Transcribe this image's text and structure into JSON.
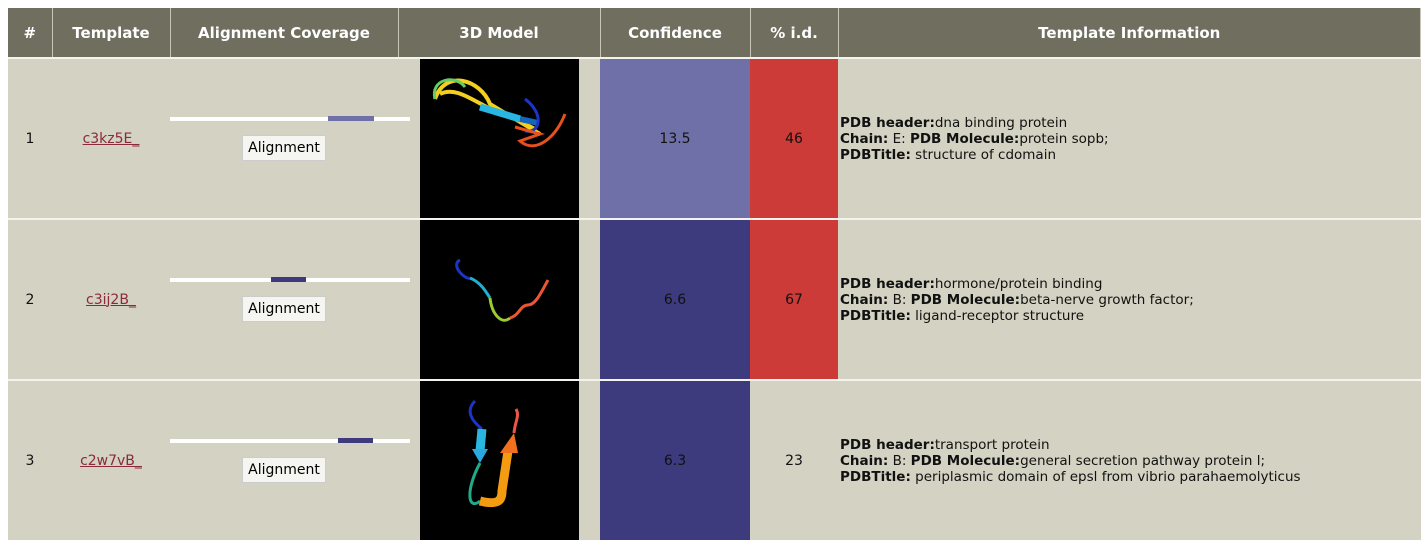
{
  "table": {
    "headers": [
      "#",
      "Template",
      "Alignment Coverage",
      "3D Model",
      "Confidence",
      "% i.d.",
      "Template Information"
    ],
    "rows": [
      {
        "rank": 1,
        "template": "c3kz5E_",
        "button": "Alignment",
        "confidence": 13.5,
        "confidence_color": "#7070a8",
        "identity": 46,
        "identity_color": "#cc3b37",
        "info": {
          "header_label": "PDB header:",
          "header": "dna binding protein",
          "chain_label": "Chain:",
          "chain": "E:",
          "molecule_label": "PDB Molecule:",
          "molecule": "protein sopb;",
          "title_label": "PDBTitle:",
          "title": "structure of cdomain"
        }
      },
      {
        "rank": 2,
        "template": "c3ij2B_",
        "button": "Alignment",
        "confidence": 6.6,
        "confidence_color": "#3d3a7e",
        "identity": 67,
        "identity_color": "#cc3b37",
        "info": {
          "header_label": "PDB header:",
          "header": "hormone/protein binding",
          "chain_label": "Chain:",
          "chain": "B:",
          "molecule_label": "PDB Molecule:",
          "molecule": "beta-nerve growth factor;",
          "title_label": "PDBTitle:",
          "title": "ligand-receptor structure"
        }
      },
      {
        "rank": 3,
        "template": "c2w7vB_",
        "button": "Alignment",
        "confidence": 6.3,
        "confidence_color": "#3d3a7e",
        "identity": 23,
        "identity_color": "#d4d2c2",
        "info": {
          "header_label": "PDB header:",
          "header": "transport protein",
          "chain_label": "Chain:",
          "chain": "B:",
          "molecule_label": "PDB Molecule:",
          "molecule": "general secretion pathway protein l;",
          "title_label": "PDBTitle:",
          "title": "periplasmic domain of epsl from vibrio parahaemolyticus"
        }
      }
    ]
  }
}
